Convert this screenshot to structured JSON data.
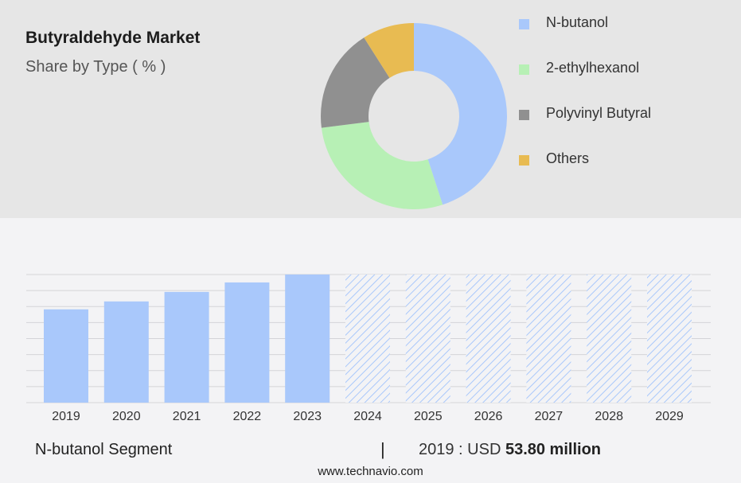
{
  "header": {
    "title": "Butyraldehyde Market",
    "subtitle": "Share by Type ( % )"
  },
  "chart_data": [
    {
      "type": "pie",
      "subtype": "donut",
      "title": "Butyraldehyde Market",
      "subtitle": "Share by Type ( % )",
      "legend_position": "right",
      "slices": [
        {
          "label": "N-butanol",
          "value": 45,
          "color": "#a9c8fb"
        },
        {
          "label": "2-ethylhexanol",
          "value": 28,
          "color": "#b7f0b5"
        },
        {
          "label": "Polyvinyl Butyral",
          "value": 18,
          "color": "#909090"
        },
        {
          "label": "Others",
          "value": 9,
          "color": "#e8bb52"
        }
      ]
    },
    {
      "type": "bar",
      "series_label": "N-butanol Segment",
      "categories": [
        "2019",
        "2020",
        "2021",
        "2022",
        "2023",
        "2024",
        "2025",
        "2026",
        "2027",
        "2028",
        "2029"
      ],
      "values": [
        59,
        64,
        70,
        76,
        81,
        81,
        81,
        81,
        81,
        81,
        81
      ],
      "forecast_from": "2024",
      "ylim": [
        0,
        81
      ],
      "grid": true,
      "colors": {
        "actual": "#a9c8fb",
        "forecast_hatch": "#a9c8fb"
      }
    }
  ],
  "footer": {
    "segment_label": "N-butanol Segment",
    "separator": "|",
    "value_prefix": "2019 : USD",
    "value_amount": "53.80 million",
    "source": "www.technavio.com"
  }
}
